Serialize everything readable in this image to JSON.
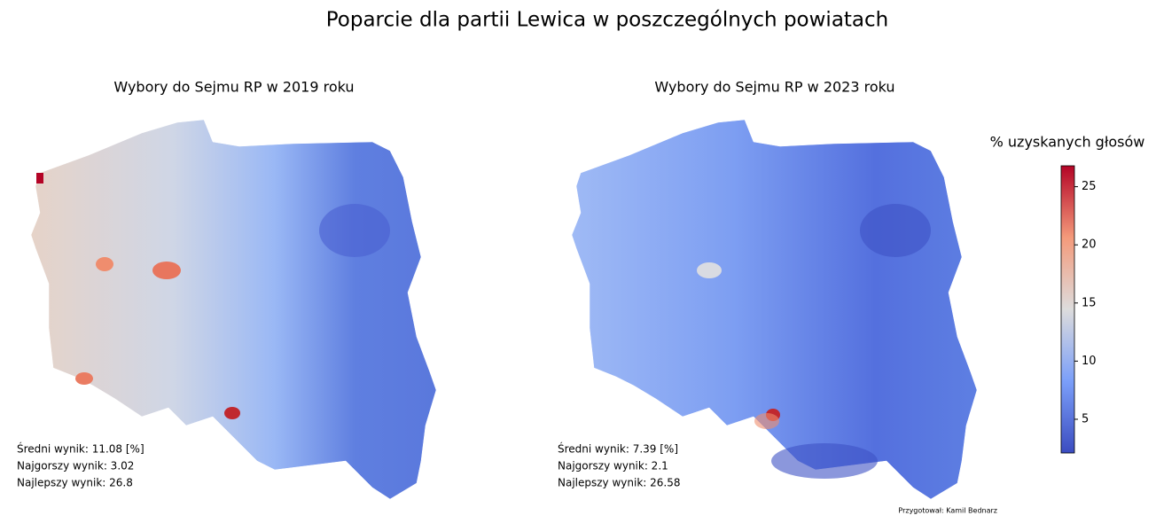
{
  "title": "Poparcie dla partii Lewica w poszczególnych powiatach",
  "maps": [
    {
      "subtitle": "Wybory do Sejmu RP w 2019 roku",
      "stats": [
        "Średni wynik: 11.08 [%]",
        "Najgorszy wynik: 3.02",
        "Najlepszy wynik: 26.8"
      ]
    },
    {
      "subtitle": "Wybory do Sejmu RP w 2023 roku",
      "stats": [
        "Średni wynik: 7.39 [%]",
        "Najgorszy wynik: 2.1",
        "Najlepszy wynik: 26.58"
      ]
    }
  ],
  "colorbar": {
    "label": "% uzyskanych głosów",
    "lim": [
      2.1,
      26.8
    ],
    "ticks": [
      5,
      10,
      15,
      20,
      25
    ]
  },
  "credit": "Przygotował: Kamil Bednarz"
}
